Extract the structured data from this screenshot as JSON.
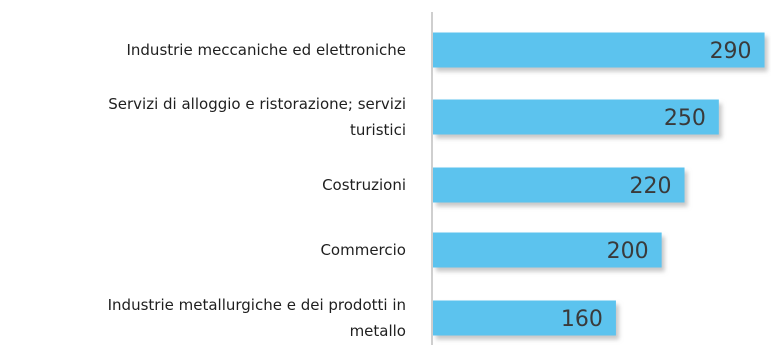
{
  "chart_data": {
    "type": "bar",
    "orientation": "horizontal",
    "categories": [
      [
        "Industrie meccaniche ed elettroniche"
      ],
      [
        "Servizi di alloggio e ristorazione; servizi",
        "turistici"
      ],
      [
        "Costruzioni"
      ],
      [
        "Commercio"
      ],
      [
        "Industrie metallurgiche e dei prodotti in",
        "metallo"
      ]
    ],
    "values": [
      290,
      250,
      220,
      200,
      160
    ],
    "data_labels": [
      "290",
      "250",
      "220",
      "200",
      "160"
    ],
    "xlim": [
      0,
      300
    ],
    "grid": false,
    "legend": "none",
    "colors": {
      "bar": "#5bc3ee",
      "bar_shadow": "#b9b9b9",
      "axis": "#bfbfbf"
    }
  }
}
